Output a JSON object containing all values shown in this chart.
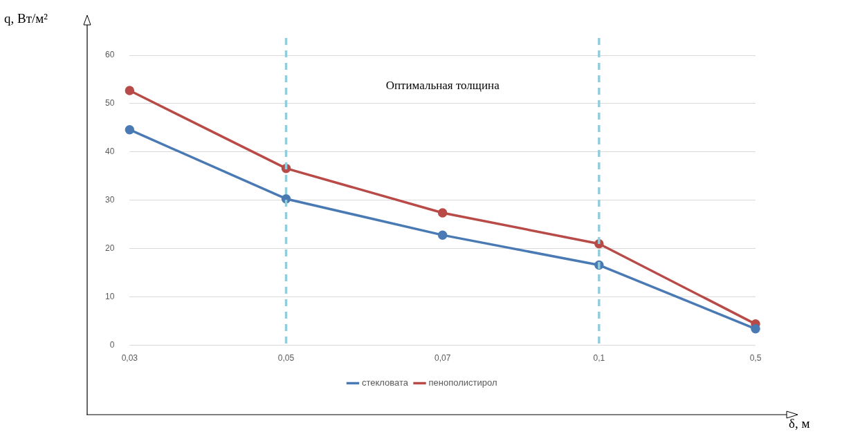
{
  "chart_data": {
    "type": "line",
    "xlabel": "δ, м",
    "ylabel": "q, Вт/м²",
    "categories": [
      "0,03",
      "0,05",
      "0,07",
      "0,1",
      "0,5"
    ],
    "series": [
      {
        "name": "стекловата",
        "color": "#4a7ab4",
        "values": [
          44.6,
          30.3,
          22.8,
          16.6,
          3.4
        ]
      },
      {
        "name": "пенополистирол",
        "color": "#b84a47",
        "values": [
          52.7,
          36.6,
          27.4,
          21.0,
          4.4
        ]
      }
    ],
    "ylim": [
      0,
      60
    ],
    "yticks": [
      0,
      10,
      20,
      30,
      40,
      50,
      60
    ],
    "grid": "y",
    "legend": "bottom",
    "marker": "circle",
    "line_style": "solid",
    "ref_lines": [
      {
        "axis": "x",
        "value": "0,05",
        "color": "#92cddc",
        "line_style": "dashed"
      },
      {
        "axis": "x",
        "value": "0,1",
        "color": "#92cddc",
        "line_style": "dashed"
      }
    ],
    "annotations": [
      "Оптимальная толщина"
    ]
  }
}
